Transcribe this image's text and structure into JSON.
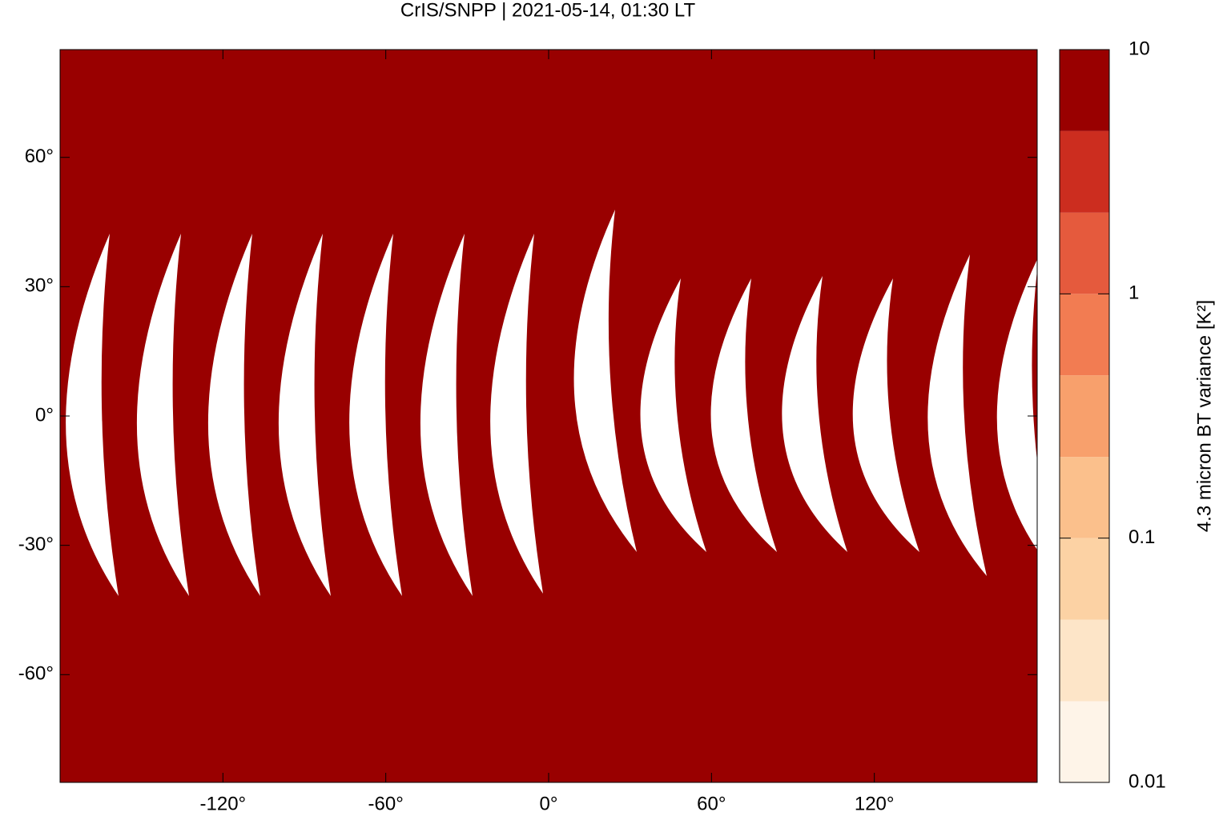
{
  "chart_data": {
    "type": "map",
    "title": "CrIS/SNPP | 2021-05-14, 01:30 LT",
    "xlim": [
      -180,
      180
    ],
    "ylim": [
      -85,
      85
    ],
    "xticks": [
      {
        "value": -120,
        "label": "-120°"
      },
      {
        "value": -60,
        "label": "-60°"
      },
      {
        "value": 0,
        "label": "0°"
      },
      {
        "value": 60,
        "label": "60°"
      },
      {
        "value": 120,
        "label": "120°"
      }
    ],
    "yticks": [
      {
        "value": 60,
        "label": "60°"
      },
      {
        "value": 30,
        "label": "30°"
      },
      {
        "value": 0,
        "label": "0°"
      },
      {
        "value": -30,
        "label": "-30°"
      },
      {
        "value": -60,
        "label": "-60°"
      }
    ],
    "colorbar": {
      "label": "4.3 micron BT variance [K²]",
      "log": true,
      "lim": [
        0.01,
        10
      ],
      "ticks": [
        10,
        1,
        0.1,
        0.01
      ],
      "levels": [
        0.01,
        0.0215,
        0.0464,
        0.1,
        0.215,
        0.464,
        1,
        2.15,
        4.64,
        10
      ],
      "colors": [
        "#fef4e8",
        "#fde5c8",
        "#fcd2a4",
        "#fbc08c",
        "#f8a06c",
        "#f27c52",
        "#e55a3d",
        "#cc2d1f",
        "#990000"
      ]
    }
  }
}
